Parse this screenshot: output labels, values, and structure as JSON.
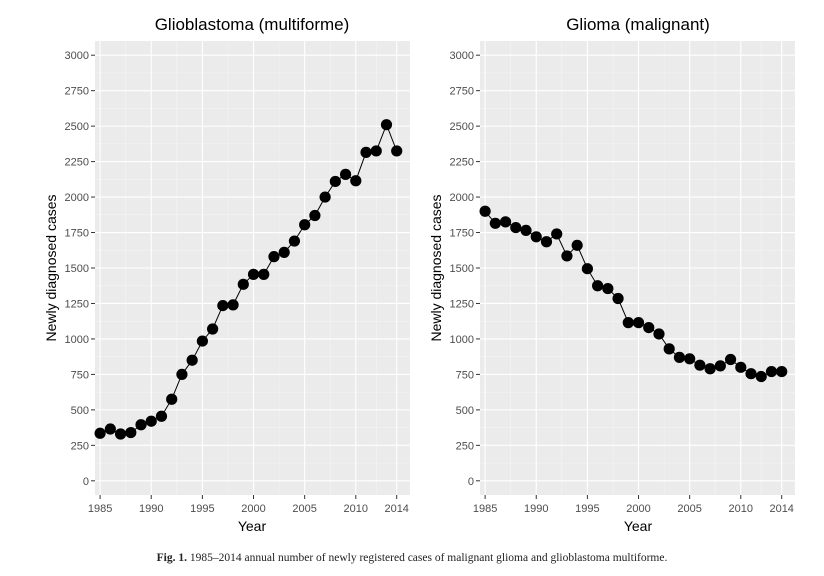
{
  "chart_data": [
    {
      "type": "line",
      "title": "Glioblastoma (multiforme)",
      "xlabel": "Year",
      "ylabel": "Newly diagnosed cases",
      "xlim": [
        1984.5,
        2015.3
      ],
      "ylim": [
        -100,
        3100
      ],
      "xticks": [
        1985,
        1990,
        1995,
        2000,
        2005,
        2010,
        2014
      ],
      "yticks": [
        0,
        250,
        500,
        750,
        1000,
        1250,
        1500,
        1750,
        2000,
        2250,
        2500,
        2750,
        3000
      ],
      "grid": true,
      "series": [
        {
          "x": [
            1985,
            1986,
            1987,
            1988,
            1989,
            1990,
            1991,
            1992,
            1993,
            1994,
            1995,
            1996,
            1997,
            1998,
            1999,
            2000,
            2001,
            2002,
            2003,
            2004,
            2005,
            2006,
            2007,
            2008,
            2009,
            2010,
            2011,
            2012,
            2013,
            2014
          ],
          "values": [
            335,
            365,
            330,
            340,
            395,
            420,
            455,
            575,
            750,
            850,
            985,
            1070,
            1235,
            1240,
            1385,
            1455,
            1455,
            1580,
            1610,
            1690,
            1805,
            1870,
            2000,
            2110,
            2160,
            2115,
            2315,
            2325,
            2510,
            2325
          ]
        }
      ]
    },
    {
      "type": "line",
      "title": "Glioma (malignant)",
      "xlabel": "Year",
      "ylabel": "Newly diagnosed cases",
      "xlim": [
        1984.5,
        2015.3
      ],
      "ylim": [
        -100,
        3100
      ],
      "xticks": [
        1985,
        1990,
        1995,
        2000,
        2005,
        2010,
        2014
      ],
      "yticks": [
        0,
        250,
        500,
        750,
        1000,
        1250,
        1500,
        1750,
        2000,
        2250,
        2500,
        2750,
        3000
      ],
      "grid": true,
      "series": [
        {
          "x": [
            1985,
            1986,
            1987,
            1988,
            1989,
            1990,
            1991,
            1992,
            1993,
            1994,
            1995,
            1996,
            1997,
            1998,
            1999,
            2000,
            2001,
            2002,
            2003,
            2004,
            2005,
            2006,
            2007,
            2008,
            2009,
            2010,
            2011,
            2012,
            2013,
            2014
          ],
          "values": [
            1900,
            1815,
            1825,
            1785,
            1765,
            1720,
            1685,
            1740,
            1585,
            1660,
            1495,
            1375,
            1355,
            1285,
            1115,
            1115,
            1080,
            1035,
            930,
            870,
            860,
            815,
            790,
            810,
            855,
            800,
            755,
            735,
            770,
            770
          ]
        }
      ]
    }
  ],
  "caption": {
    "label": "Fig. 1.",
    "text": " 1985–2014 annual number of newly registered cases of malignant glioma and glioblastoma multiforme."
  },
  "colors": {
    "panel_background": "#ebebeb",
    "grid_major": "#ffffff",
    "grid_minor": "#f4f4f4",
    "points": "#000000"
  }
}
